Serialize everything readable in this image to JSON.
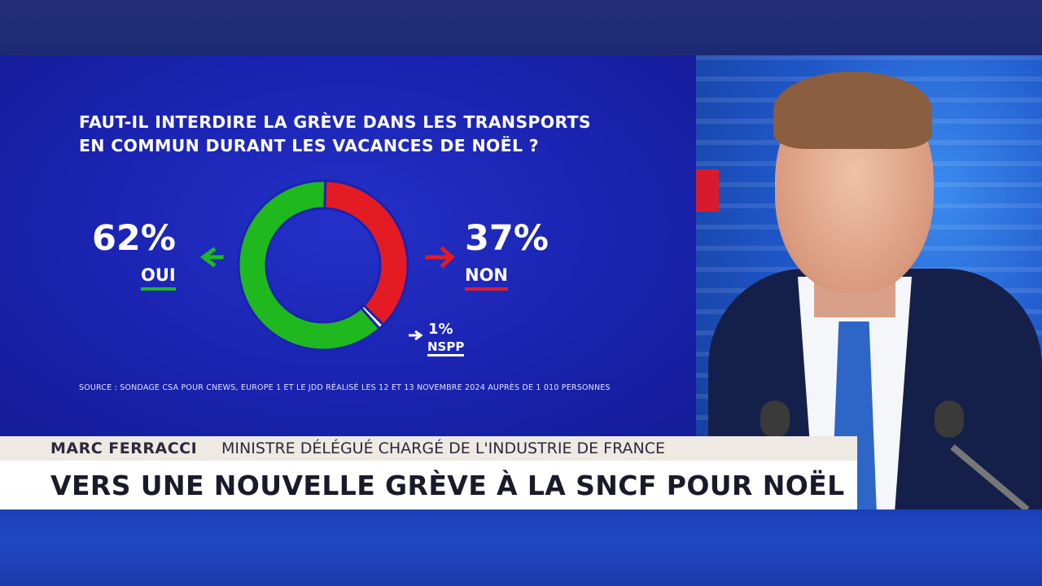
{
  "broadcast": {
    "name": "MARC FERRACCI",
    "role": "MINISTRE DÉLÉGUÉ CHARGÉ DE L'INDUSTRIE DE FRANCE",
    "headline": "VERS UNE NOUVELLE GRÈVE À LA SNCF POUR NOËL"
  },
  "colors": {
    "yes": "#1fb81f",
    "no": "#e51b23",
    "other": "#ffffff",
    "panel": "#1a23b0"
  },
  "chart_data": {
    "type": "pie",
    "title_line1": "FAUT-IL INTERDIRE LA GRÈVE DANS LES TRANSPORTS",
    "title_line2": "EN COMMUN DURANT LES VACANCES DE NOËL ?",
    "slices": [
      {
        "label": "NON",
        "value": 37,
        "display": "37%",
        "color": "#e51b23"
      },
      {
        "label": "NSPP",
        "value": 1,
        "display": "1%",
        "color": "#ffffff"
      },
      {
        "label": "OUI",
        "value": 62,
        "display": "62%",
        "color": "#1fb81f"
      }
    ],
    "source": "SOURCE : SONDAGE CSA POUR CNEWS, EUROPE 1 ET LE JDD RÉALISÉ LES 12 ET 13 NOVEMBRE 2024 AUPRÈS DE 1 010 PERSONNES"
  }
}
